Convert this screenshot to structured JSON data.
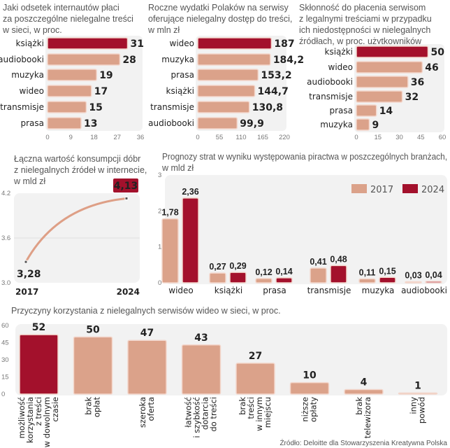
{
  "colors": {
    "highlight": "#a3112c",
    "bar": "#dba28a",
    "bar_stroke": "#f3d6cb",
    "panel": "#f2f2f2",
    "line": "#de9f86"
  },
  "chart_data": [
    {
      "type": "bar",
      "orientation": "horizontal",
      "title": [
        "Jaki odsetek internautów płaci",
        "za poszczególne nielegalne treści",
        "w sieci, w proc."
      ],
      "categories": [
        "książki",
        "audiobooki",
        "muzyka",
        "wideo",
        "transmisje",
        "prasa"
      ],
      "values": [
        31,
        28,
        19,
        17,
        15,
        13
      ],
      "labels": [
        "31",
        "28",
        "19",
        "17",
        "15",
        "13"
      ],
      "xlim": [
        0,
        36
      ],
      "ticks": [
        "0",
        "9",
        "18",
        "27",
        "36"
      ],
      "highlight_index": 0
    },
    {
      "type": "bar",
      "orientation": "horizontal",
      "title": [
        "Roczne wydatki Polaków na serwisy",
        "oferujące nielegalny dostęp do treści,",
        "w mln zł"
      ],
      "categories": [
        "wideo",
        "muzyka",
        "prasa",
        "książki",
        "transmisje",
        "audiobooki"
      ],
      "values": [
        187,
        184.2,
        153.2,
        144.7,
        130.8,
        99.9
      ],
      "labels": [
        "187",
        "184,2",
        "153,2",
        "144,7",
        "130,8",
        "99,9"
      ],
      "xlim": [
        0,
        220
      ],
      "ticks": [
        "0",
        "55",
        "110",
        "165",
        "220"
      ],
      "highlight_index": 0
    },
    {
      "type": "bar",
      "orientation": "horizontal",
      "title": [
        "Skłonność do płacenia serwisom",
        "z legalnymi treściami w przypadku",
        "ich niedostępności w nielegalnych",
        "źródłach, w proc. użytkowników"
      ],
      "categories": [
        "książki",
        "wideo",
        "audiobooki",
        "transmisje",
        "prasa",
        "muzyka"
      ],
      "values": [
        50,
        46,
        36,
        32,
        14,
        9
      ],
      "labels": [
        "50",
        "46",
        "36",
        "32",
        "14",
        "9"
      ],
      "xlim": [
        0,
        60
      ],
      "ticks": [
        "0",
        "15",
        "30",
        "45",
        "60"
      ],
      "highlight_index": 0
    },
    {
      "type": "line",
      "title": [
        "Łączna wartość konsumpcji dóbr",
        "z nielegalnych źródeł w internecie,",
        "w mld zł"
      ],
      "x": [
        "2017",
        "2024"
      ],
      "y": [
        3.28,
        4.13
      ],
      "labels": [
        "3,28",
        "4,13"
      ],
      "ylim": [
        3.0,
        4.2
      ],
      "ticks": [
        "3.0",
        "3.6",
        "4.2"
      ],
      "grid": true
    },
    {
      "type": "bar",
      "orientation": "vertical",
      "title": [
        "Prognozy strat w wyniku występowania piractwa w poszczególnych branżach,",
        "w mld zł"
      ],
      "categories": [
        "wideo",
        "książki",
        "prasa",
        "transmisje",
        "muzyka",
        "audiobooki"
      ],
      "series": [
        {
          "name": "2017",
          "values": [
            1.78,
            0.27,
            0.12,
            0.41,
            0.11,
            0.03
          ],
          "labels": [
            "1,78",
            "0,27",
            "0,12",
            "0,41",
            "0,11",
            "0,03"
          ]
        },
        {
          "name": "2024",
          "values": [
            2.36,
            0.29,
            0.14,
            0.48,
            0.15,
            0.04
          ],
          "labels": [
            "2,36",
            "0,29",
            "0,14",
            "0,48",
            "0,15",
            "0,04"
          ]
        }
      ],
      "ylim": [
        0,
        3
      ],
      "ticks": [
        "0",
        "1",
        "2",
        "3"
      ],
      "legend": "top-right"
    },
    {
      "type": "bar",
      "orientation": "vertical",
      "title": [
        "Przyczyny korzystania z nielegalnych serwisów wideo w sieci, w proc."
      ],
      "categories": [
        [
          "możliwość",
          "korzystania",
          "z treści",
          "w dowolnym",
          "czasie"
        ],
        [
          "brak",
          "opłat"
        ],
        [
          "szeroka",
          "oferta"
        ],
        [
          "łatwość",
          "i szybkość",
          "dotarcia",
          "do treści"
        ],
        [
          "brak",
          "treści",
          "w innym",
          "miejscu"
        ],
        [
          "niższe",
          "opłaty"
        ],
        [
          "brak",
          "telewizora"
        ],
        [
          "inny",
          "powód"
        ]
      ],
      "values": [
        52,
        50,
        47,
        43,
        27,
        10,
        4,
        1
      ],
      "labels": [
        "52",
        "50",
        "47",
        "43",
        "27",
        "10",
        "4",
        "1"
      ],
      "ylim": [
        0,
        60
      ],
      "ticks": [
        "0",
        "15",
        "30",
        "45",
        "60"
      ],
      "highlight_index": 0
    }
  ],
  "source": "Źródło: Deloitte dla Stowarzyszenia Kreatywna Polska"
}
